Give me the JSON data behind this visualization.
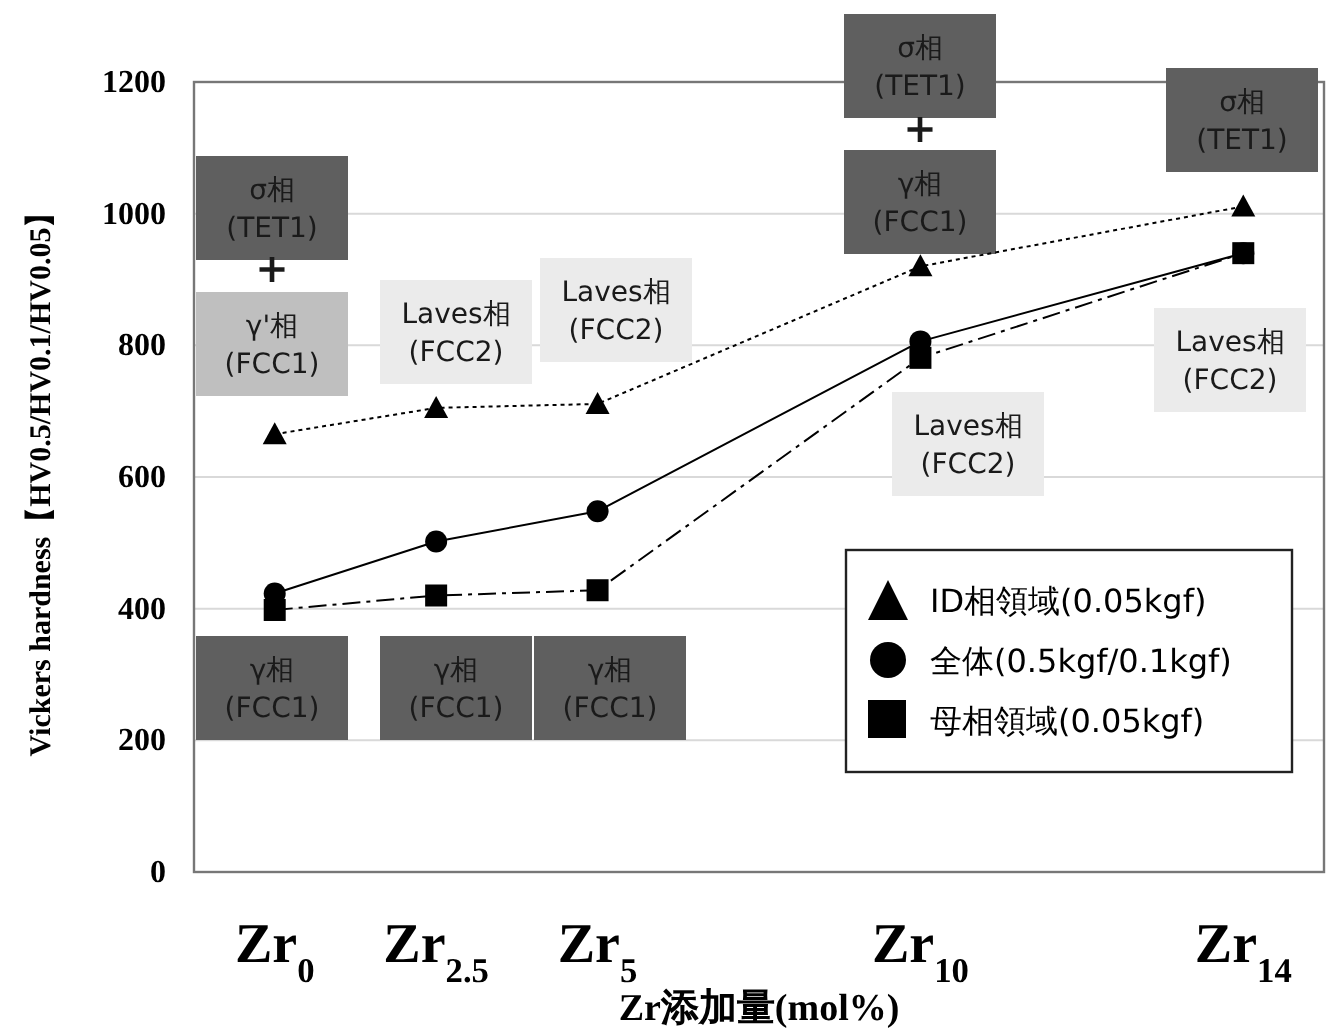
{
  "chart_data": {
    "type": "line",
    "xlabel": "Zr添加量(mol%)",
    "ylabel": "Vickers hardness【HV0.5/HV0.1/HV0.05】",
    "categories": [
      "Zr$_{0}$",
      "Zr$_{2.5}$",
      "Zr$_{5}$",
      null,
      "Zr$_{10}$",
      null,
      "Zr$_{14}$"
    ],
    "ylim": [
      0,
      1200
    ],
    "yticks": [
      0,
      200,
      400,
      600,
      800,
      1000,
      1200
    ],
    "grid": "y",
    "legend": "bottom right",
    "series": [
      {
        "name": "ID相領域(0.05kgf)",
        "color": "#000000",
        "marker": "triangle",
        "line_style": "dotted",
        "values": [
          665,
          705,
          711,
          null,
          920,
          null,
          1011
        ]
      },
      {
        "name": "全体(0.5kgf/0.1kgf)",
        "color": "#000000",
        "marker": "circle",
        "line_style": "solid",
        "values": [
          423,
          502,
          548,
          null,
          806,
          null,
          940
        ]
      },
      {
        "name": "母相領域(0.05kgf)",
        "color": "#000000",
        "marker": "square",
        "line_style": "dashed",
        "values": [
          398,
          420,
          428,
          null,
          781,
          null,
          940
        ]
      }
    ],
    "annotations": [
      "σ相\n(TET1)",
      "+",
      "γ'相\n(FCC1)",
      "Laves相\n(FCC2)",
      "Laves相\n(FCC2)",
      "σ相\n(TET1)",
      "+",
      "γ相\n(FCC1)",
      "Laves相\n(FCC2)",
      "σ相\n(TET1)",
      "Laves相\n(FCC2)",
      "γ相\n(FCC1)",
      "γ相\n(FCC1)",
      "γ相\n(FCC1)"
    ]
  }
}
